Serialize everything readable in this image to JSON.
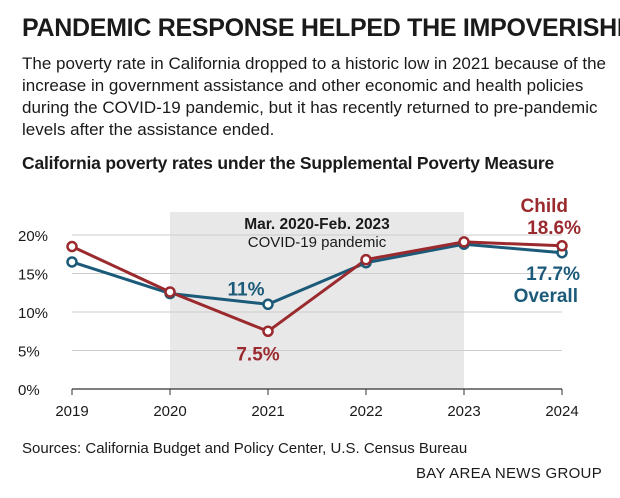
{
  "headline": "PANDEMIC RESPONSE HELPED THE IMPOVERISHED",
  "dek": "The poverty rate in California dropped to a historic low in 2021 because of the increase in government assistance and other economic and health policies during the COVID-19 pandemic, but it has recently returned to pre-pandemic levels after the assistance ended.",
  "source": "Sources: California Budget and Policy Center, U.S. Census Bureau",
  "credit": "BAY AREA NEWS GROUP",
  "colors": {
    "child": "#9b2a2f",
    "overall": "#1b5a78",
    "shade": "#e8e8e8",
    "grid": "#cccccc"
  },
  "chart_data": {
    "type": "line",
    "title": "California poverty rates under the Supplemental Poverty Measure",
    "x": [
      2019,
      2020,
      2021,
      2022,
      2023,
      2024
    ],
    "x_tick_labels": [
      "2019",
      "2020",
      "2021",
      "2022",
      "2023",
      "2024"
    ],
    "ylim": [
      0,
      20
    ],
    "y_ticks": [
      0,
      5,
      10,
      15,
      20
    ],
    "y_tick_labels": [
      "0%",
      "5%",
      "10%",
      "15%",
      "20%"
    ],
    "grid": true,
    "series": [
      {
        "name": "Child",
        "color": "#9b2a2f",
        "values": [
          18.5,
          12.6,
          7.5,
          16.8,
          19.1,
          18.6
        ]
      },
      {
        "name": "Overall",
        "color": "#1b5a78",
        "values": [
          16.5,
          12.4,
          11.0,
          16.4,
          18.8,
          17.7
        ]
      }
    ],
    "shaded_region": {
      "x_start": 2020,
      "x_end": 2023,
      "title": "Mar. 2020-Feb. 2023",
      "subtitle": "COVID-19 pandemic"
    },
    "annotations": {
      "child_2021": "7.5%",
      "overall_2021": "11%",
      "child_end_name": "Child",
      "child_end_value": "18.6%",
      "overall_end_value": "17.7%",
      "overall_end_name": "Overall"
    }
  }
}
